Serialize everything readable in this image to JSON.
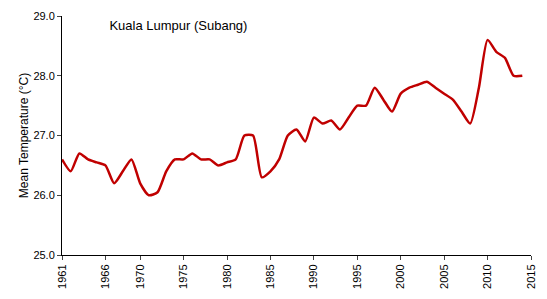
{
  "chart_data": {
    "type": "line",
    "title": "Kuala Lumpur (Subang)",
    "y_label": "Mean Temperature (°C)",
    "x": [
      1961,
      1962,
      1963,
      1964,
      1965,
      1966,
      1967,
      1968,
      1969,
      1970,
      1971,
      1972,
      1973,
      1974,
      1975,
      1976,
      1977,
      1978,
      1979,
      1980,
      1981,
      1982,
      1983,
      1984,
      1985,
      1986,
      1987,
      1988,
      1989,
      1990,
      1991,
      1992,
      1993,
      1994,
      1995,
      1996,
      1997,
      1998,
      1999,
      2000,
      2001,
      2002,
      2003,
      2004,
      2005,
      2006,
      2007,
      2008,
      2009,
      2010,
      2011,
      2012,
      2013,
      2014
    ],
    "values": [
      26.6,
      26.4,
      26.7,
      26.6,
      26.55,
      26.5,
      26.2,
      26.4,
      26.6,
      26.2,
      26.0,
      26.05,
      26.4,
      26.6,
      26.6,
      26.7,
      26.6,
      26.6,
      26.5,
      26.55,
      26.6,
      27.0,
      27.0,
      26.3,
      26.4,
      26.6,
      27.0,
      27.1,
      26.9,
      27.3,
      27.2,
      27.25,
      27.1,
      27.3,
      27.5,
      27.5,
      27.8,
      27.6,
      27.4,
      27.7,
      27.8,
      27.85,
      27.9,
      27.8,
      27.7,
      27.6,
      27.4,
      27.2,
      27.8,
      28.6,
      28.4,
      28.3,
      28.0,
      28.0
    ],
    "color": "#c00000",
    "xlim": [
      1961,
      2015
    ],
    "xticks": [
      1961,
      1966,
      1970,
      1975,
      1980,
      1985,
      1990,
      1995,
      2000,
      2005,
      2010,
      2015
    ],
    "ylim": [
      25,
      29
    ],
    "yticks": [
      {
        "value": 25,
        "label": "25.0"
      },
      {
        "value": 26,
        "label": "26.0"
      },
      {
        "value": 27,
        "label": "27.0"
      },
      {
        "value": 28,
        "label": "28.0"
      },
      {
        "value": 29,
        "label": "29.0"
      }
    ],
    "grid": false
  }
}
